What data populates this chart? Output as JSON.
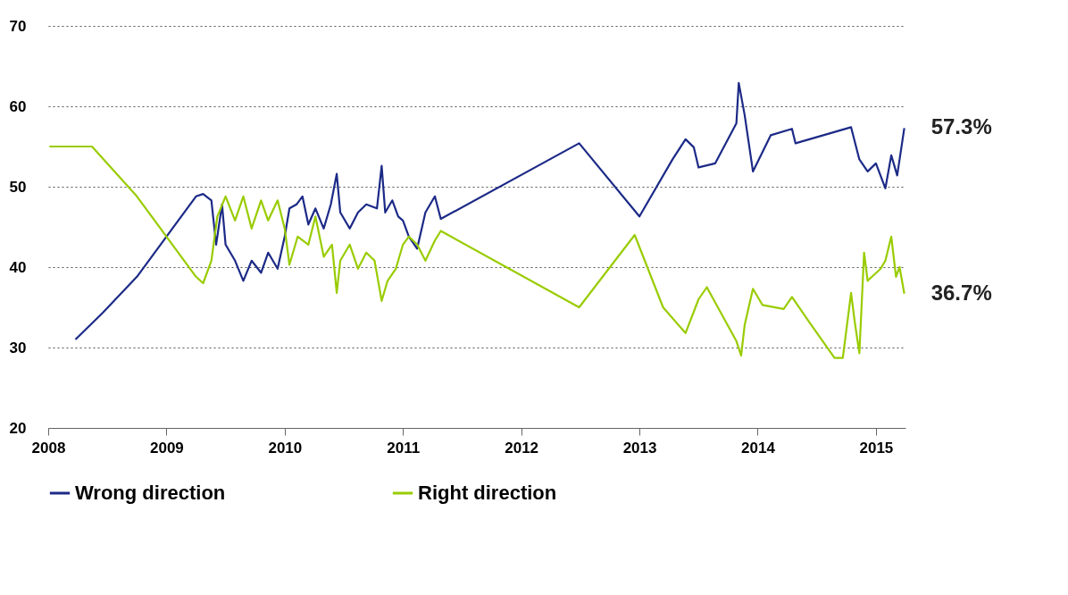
{
  "chart_data": {
    "type": "line",
    "xlim": [
      2008,
      2015.25
    ],
    "xticks": [
      2008,
      2009,
      2010,
      2011,
      2012,
      2013,
      2014,
      2015
    ],
    "ylim": [
      20,
      70
    ],
    "yticks": [
      20,
      30,
      40,
      50,
      60,
      70
    ],
    "grid": "y",
    "legend": "bottom",
    "marker": "none",
    "line_style": "solid",
    "series": [
      {
        "name": "Wrong direction",
        "color": "#1c2a87",
        "x": [
          2008.23,
          2008.46,
          2008.75,
          2009.0,
          2009.25,
          2009.31,
          2009.38,
          2009.42,
          2009.47,
          2009.5,
          2009.58,
          2009.65,
          2009.72,
          2009.8,
          2009.86,
          2009.94,
          2010.0,
          2010.04,
          2010.1,
          2010.15,
          2010.2,
          2010.26,
          2010.33,
          2010.39,
          2010.44,
          2010.47,
          2010.55,
          2010.62,
          2010.69,
          2010.78,
          2010.82,
          2010.85,
          2010.91,
          2010.96,
          2011.0,
          2011.05,
          2011.12,
          2011.19,
          2011.27,
          2011.32,
          2012.49,
          2013.0,
          2013.28,
          2013.39,
          2013.46,
          2013.5,
          2013.64,
          2013.82,
          2013.84,
          2013.89,
          2013.96,
          2014.11,
          2014.29,
          2014.32,
          2014.79,
          2014.86,
          2014.93,
          2015.0,
          2015.08,
          2015.13,
          2015.18,
          2015.24
        ],
        "values": [
          31,
          34.3,
          38.8,
          43.8,
          48.8,
          49.1,
          48.3,
          42.8,
          47.8,
          42.8,
          40.8,
          38.3,
          40.8,
          39.3,
          41.8,
          39.8,
          43.8,
          47.3,
          47.8,
          48.8,
          45.3,
          47.3,
          44.8,
          47.8,
          51.6,
          46.8,
          44.8,
          46.8,
          47.8,
          47.3,
          52.6,
          46.8,
          48.3,
          46.3,
          45.8,
          43.8,
          42.3,
          46.8,
          48.8,
          46,
          55.4,
          46.3,
          53.4,
          55.9,
          54.9,
          52.4,
          52.9,
          57.9,
          62.9,
          58.9,
          51.9,
          56.4,
          57.2,
          55.4,
          57.4,
          53.4,
          51.9,
          52.9,
          49.8,
          53.9,
          51.4,
          57.3
        ]
      },
      {
        "name": "Right direction",
        "color": "#99cc00",
        "x": [
          2008.01,
          2008.37,
          2008.75,
          2009.0,
          2009.25,
          2009.31,
          2009.38,
          2009.43,
          2009.5,
          2009.58,
          2009.65,
          2009.72,
          2009.8,
          2009.86,
          2009.94,
          2010.0,
          2010.04,
          2010.11,
          2010.2,
          2010.26,
          2010.33,
          2010.4,
          2010.44,
          2010.47,
          2010.55,
          2010.62,
          2010.69,
          2010.76,
          2010.82,
          2010.87,
          2010.94,
          2011.0,
          2011.05,
          2011.12,
          2011.19,
          2011.27,
          2011.32,
          2012.49,
          2012.96,
          2013.2,
          2013.39,
          2013.5,
          2013.57,
          2013.82,
          2013.86,
          2013.89,
          2013.96,
          2014.04,
          2014.22,
          2014.29,
          2014.43,
          2014.65,
          2014.72,
          2014.79,
          2014.82,
          2014.86,
          2014.9,
          2014.93,
          2015.04,
          2015.08,
          2015.13,
          2015.17,
          2015.2,
          2015.24
        ],
        "values": [
          55,
          55,
          48.8,
          43.8,
          38.8,
          38,
          40.8,
          46.3,
          48.8,
          45.8,
          48.8,
          44.8,
          48.3,
          45.8,
          48.3,
          44.8,
          40.3,
          43.8,
          42.8,
          46.3,
          41.3,
          42.8,
          36.8,
          40.8,
          42.8,
          39.8,
          41.8,
          40.8,
          35.8,
          38.3,
          39.8,
          42.8,
          43.8,
          42.8,
          40.8,
          43.3,
          44.5,
          35,
          44,
          35,
          31.8,
          36,
          37.5,
          30.8,
          29,
          32.8,
          37.3,
          35.3,
          34.8,
          36.3,
          33.3,
          28.7,
          28.7,
          36.8,
          33.3,
          29.3,
          41.8,
          38.3,
          39.8,
          40.8,
          43.8,
          38.8,
          40,
          36.7
        ]
      }
    ],
    "annotations": [
      {
        "text": "57.3%",
        "x": 2015.24,
        "y": 57.3
      },
      {
        "text": "36.7%",
        "x": 2015.24,
        "y": 36.7
      }
    ]
  }
}
